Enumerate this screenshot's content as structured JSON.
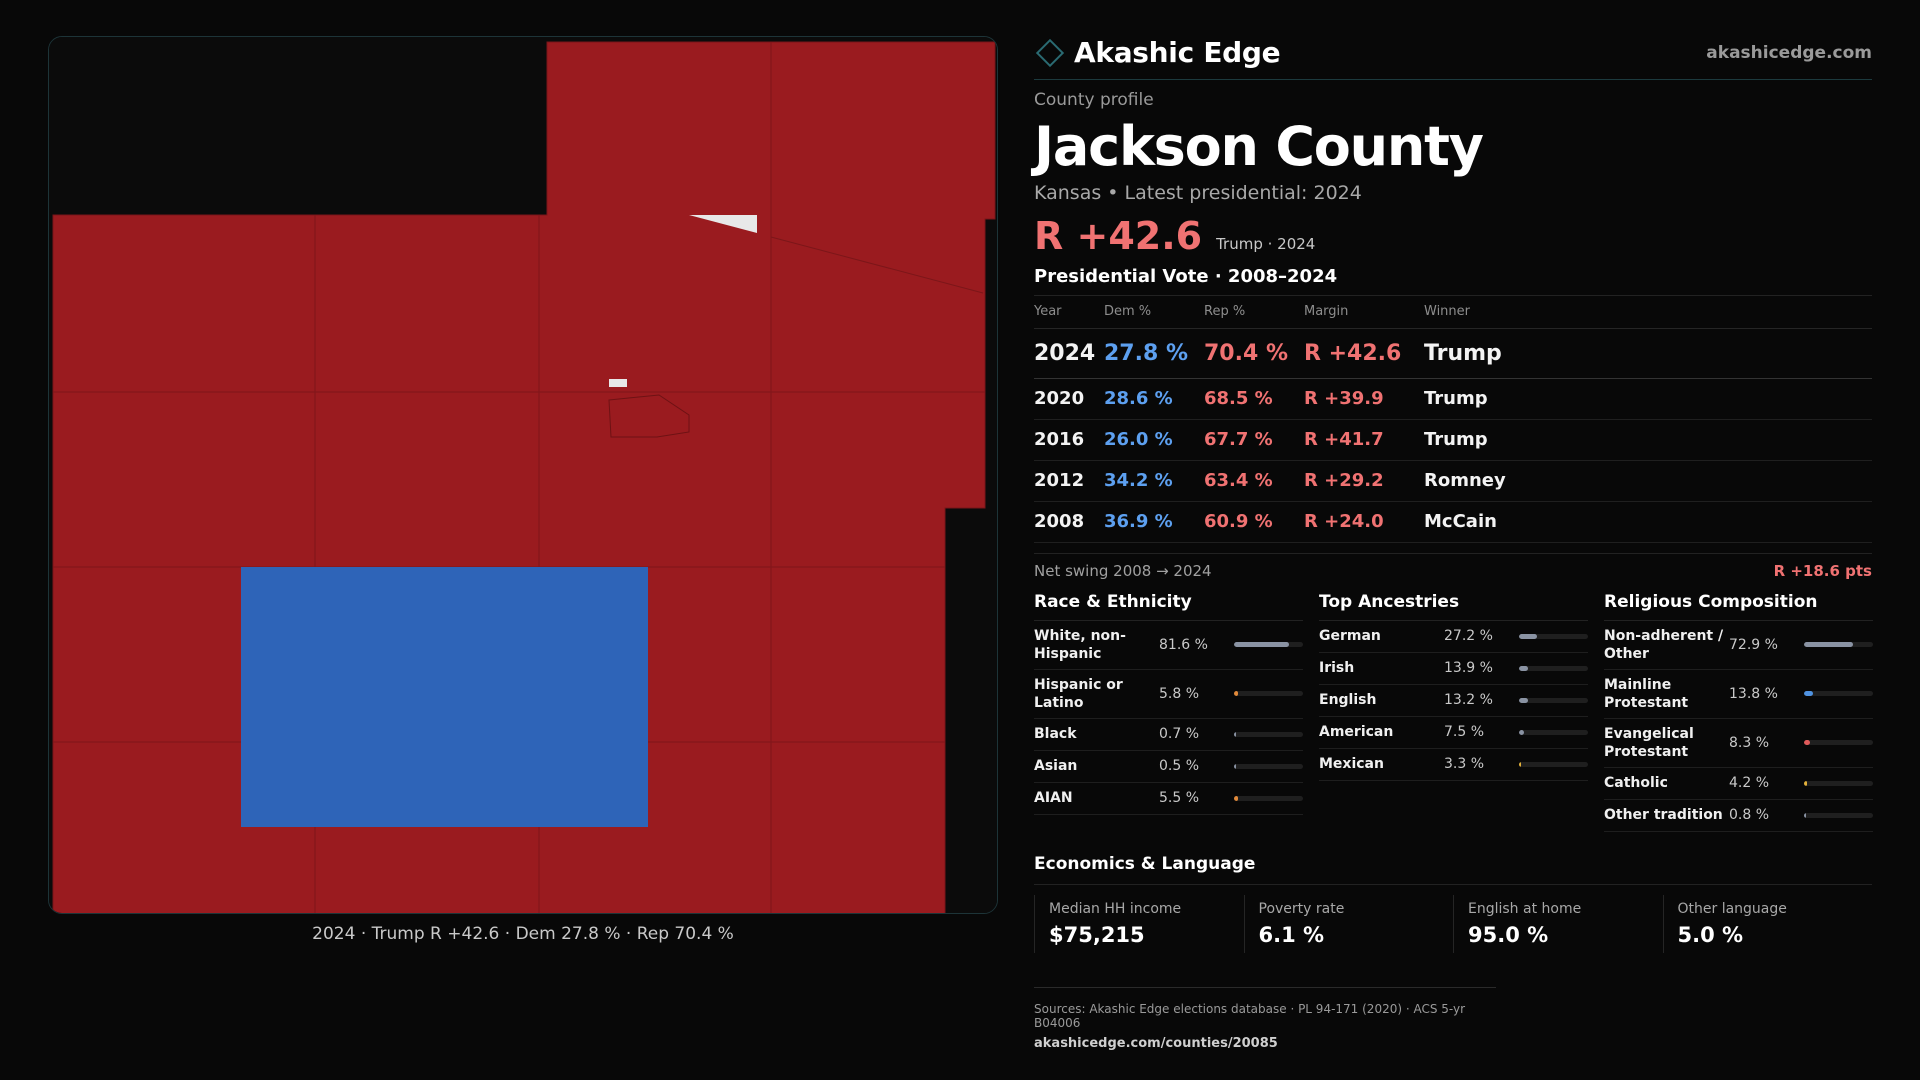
{
  "brand": {
    "name": "Akashic Edge",
    "url": "akashicedge.com"
  },
  "profile": {
    "kicker": "County profile",
    "county": "Jackson County",
    "subline": "Kansas • Latest presidential: 2024",
    "margin": "R +42.6",
    "margin_note": "Trump · 2024"
  },
  "vote_table": {
    "title": "Presidential Vote · 2008–2024",
    "headers": [
      "Year",
      "Dem %",
      "Rep %",
      "Margin",
      "Winner"
    ],
    "rows": [
      {
        "year": "2024",
        "dem": "27.8 %",
        "rep": "70.4 %",
        "margin": "R +42.6",
        "winner": "Trump"
      },
      {
        "year": "2020",
        "dem": "28.6 %",
        "rep": "68.5 %",
        "margin": "R +39.9",
        "winner": "Trump"
      },
      {
        "year": "2016",
        "dem": "26.0 %",
        "rep": "67.7 %",
        "margin": "R +41.7",
        "winner": "Trump"
      },
      {
        "year": "2012",
        "dem": "34.2 %",
        "rep": "63.4 %",
        "margin": "R +29.2",
        "winner": "Romney"
      },
      {
        "year": "2008",
        "dem": "36.9 %",
        "rep": "60.9 %",
        "margin": "R +24.0",
        "winner": "McCain"
      }
    ]
  },
  "swing": {
    "label": "Net swing 2008 → 2024",
    "value": "R +18.6 pts"
  },
  "race": {
    "title": "Race & Ethnicity",
    "items": [
      {
        "label": "White, non-Hispanic",
        "value": "81.6 %",
        "pct": 81.6,
        "color": "#8a93a3"
      },
      {
        "label": "Hispanic or Latino",
        "value": "5.8 %",
        "pct": 5.8,
        "color": "#e28a3a"
      },
      {
        "label": "Black",
        "value": "0.7 %",
        "pct": 0.7,
        "color": "#8a93a3"
      },
      {
        "label": "Asian",
        "value": "0.5 %",
        "pct": 0.5,
        "color": "#8a93a3"
      },
      {
        "label": "AIAN",
        "value": "5.5 %",
        "pct": 5.5,
        "color": "#e28a3a"
      }
    ]
  },
  "ancestry": {
    "title": "Top Ancestries",
    "items": [
      {
        "label": "German",
        "value": "27.2 %",
        "pct": 27.2,
        "color": "#8a93a3"
      },
      {
        "label": "Irish",
        "value": "13.9 %",
        "pct": 13.9,
        "color": "#8a93a3"
      },
      {
        "label": "English",
        "value": "13.2 %",
        "pct": 13.2,
        "color": "#8a93a3"
      },
      {
        "label": "American",
        "value": "7.5 %",
        "pct": 7.5,
        "color": "#8a93a3"
      },
      {
        "label": "Mexican",
        "value": "3.3 %",
        "pct": 3.3,
        "color": "#e2b03a"
      }
    ]
  },
  "religion": {
    "title": "Religious Composition",
    "items": [
      {
        "label": "Non-adherent / Other",
        "value": "72.9 %",
        "pct": 72.9,
        "color": "#8a93a3"
      },
      {
        "label": "Mainline Protestant",
        "value": "13.8 %",
        "pct": 13.8,
        "color": "#4f92e0"
      },
      {
        "label": "Evangelical Protestant",
        "value": "8.3 %",
        "pct": 8.3,
        "color": "#e05a5a"
      },
      {
        "label": "Catholic",
        "value": "4.2 %",
        "pct": 4.2,
        "color": "#e2b03a"
      },
      {
        "label": "Other tradition",
        "value": "0.8 %",
        "pct": 0.8,
        "color": "#8a93a3"
      }
    ]
  },
  "economics": {
    "title": "Economics & Language",
    "items": [
      {
        "label": "Median HH income",
        "value": "$75,215"
      },
      {
        "label": "Poverty rate",
        "value": "6.1 %"
      },
      {
        "label": "English at home",
        "value": "95.0 %"
      },
      {
        "label": "Other language",
        "value": "5.0 %"
      }
    ]
  },
  "map": {
    "caption": "2024 · Trump R +42.6 · Dem 27.8 % · Rep 70.4 %",
    "rep_color": "#9a1b1f",
    "dem_color": "#2e64b8"
  },
  "sources": {
    "text": "Sources: Akashic Edge elections database · PL 94-171 (2020) · ACS 5-yr B04006",
    "url": "akashicedge.com/counties/20085"
  }
}
